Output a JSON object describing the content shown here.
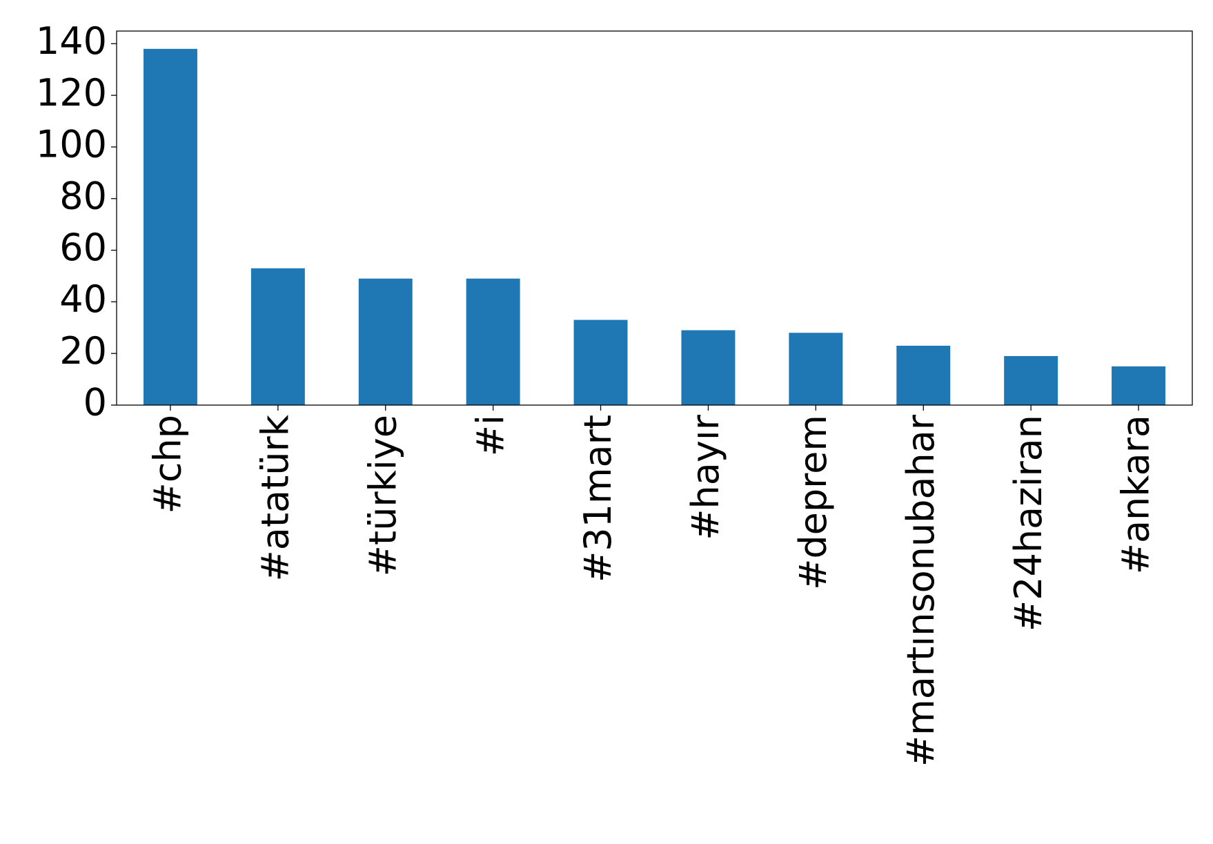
{
  "chart_data": {
    "type": "bar",
    "categories": [
      "#chp",
      "#atatürk",
      "#türkiye",
      "#i",
      "#31mart",
      "#hayır",
      "#deprem",
      "#martınsonubahar",
      "#24haziran",
      "#ankara"
    ],
    "values": [
      138,
      53,
      49,
      49,
      33,
      29,
      28,
      23,
      19,
      15
    ],
    "color": "#1f77b4",
    "ylim": [
      0,
      144.9
    ],
    "yticks": [
      0,
      20,
      40,
      60,
      80,
      100,
      120,
      140
    ],
    "grid": false
  }
}
